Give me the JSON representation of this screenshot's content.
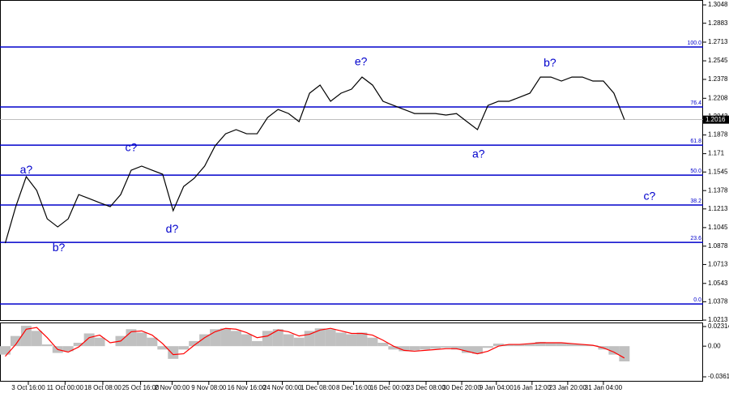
{
  "chart_data": [
    {
      "type": "line",
      "xlim": [
        0,
        67
      ],
      "xticks": [
        {
          "value": 2.7,
          "label": "3 Oct 16:00"
        },
        {
          "value": 6.2,
          "label": "11 Oct 00:00"
        },
        {
          "value": 9.8,
          "label": "18 Oct 08:00"
        },
        {
          "value": 13.4,
          "label": "25 Oct 16:00"
        },
        {
          "value": 16.4,
          "label": "2 Nov 00:00"
        },
        {
          "value": 19.9,
          "label": "9 Nov 08:00"
        },
        {
          "value": 23.5,
          "label": "16 Nov 16:00"
        },
        {
          "value": 26.9,
          "label": "24 Nov 00:00"
        },
        {
          "value": 30.3,
          "label": "1 Dec 08:00"
        },
        {
          "value": 33.7,
          "label": "8 Dec 16:00"
        },
        {
          "value": 37.1,
          "label": "16 Dec 00:00"
        },
        {
          "value": 40.6,
          "label": "23 Dec 08:00"
        },
        {
          "value": 44.0,
          "label": "30 Dec 20:00"
        },
        {
          "value": 47.3,
          "label": "9 Jan 04:00"
        },
        {
          "value": 50.7,
          "label": "16 Jan 12:00"
        },
        {
          "value": 54.1,
          "label": "23 Jan 20:00"
        },
        {
          "value": 57.5,
          "label": "31 Jan 04:00"
        }
      ],
      "ylim": [
        1.0206,
        1.3092
      ],
      "yticks": [
        1.3048,
        1.2883,
        1.2713,
        1.2545,
        1.2378,
        1.2208,
        1.2043,
        1.1878,
        1.171,
        1.1545,
        1.1378,
        1.1213,
        1.1045,
        1.0878,
        1.0713,
        1.0543,
        1.0378,
        1.0213
      ],
      "series": [
        {
          "color": "#000000",
          "values": [
            1.0905,
            1.1233,
            1.1503,
            1.1379,
            1.1124,
            1.1051,
            1.1124,
            1.1342,
            1.1306,
            1.1269,
            1.1233,
            1.1342,
            1.1561,
            1.1598,
            1.1561,
            1.1525,
            1.1197,
            1.1415,
            1.1488,
            1.1598,
            1.178,
            1.1889,
            1.1926,
            1.1889,
            1.1889,
            1.2035,
            1.2108,
            1.2071,
            1.1998,
            1.2254,
            1.2327,
            1.2181,
            1.2254,
            1.229,
            1.2399,
            1.2327,
            1.2181,
            1.2144,
            1.2108,
            1.2071,
            1.2071,
            1.2071,
            1.2057,
            1.2071,
            1.1998,
            1.1926,
            1.2144,
            1.2181,
            1.2181,
            1.2217,
            1.2254,
            1.2399,
            1.2399,
            1.2363,
            1.2399,
            1.2399,
            1.2363,
            1.2363,
            1.2254,
            1.2016
          ]
        }
      ],
      "current_price": 1.2016,
      "fib_color": "#0000cc",
      "fib_levels": [
        {
          "label": "100.0",
          "price": 1.2669
        },
        {
          "label": "76.4",
          "price": 1.213
        },
        {
          "label": "61.8",
          "price": 1.1787
        },
        {
          "label": "50.0",
          "price": 1.1517
        },
        {
          "label": "38.2",
          "price": 1.1248
        },
        {
          "label": "23.6",
          "price": 1.0912
        },
        {
          "label": "0.0",
          "price": 1.0358
        }
      ],
      "annotations": [
        {
          "text": "a?",
          "x": 2.5,
          "y": 1.1561
        },
        {
          "text": "b?",
          "x": 5.6,
          "y": 1.0861
        },
        {
          "text": "c?",
          "x": 12.5,
          "y": 1.1758
        },
        {
          "text": "d?",
          "x": 16.4,
          "y": 1.1029
        },
        {
          "text": "e?",
          "x": 34.4,
          "y": 1.2531
        },
        {
          "text": "a?",
          "x": 45.6,
          "y": 1.17
        },
        {
          "text": "b?",
          "x": 52.4,
          "y": 1.2523
        },
        {
          "text": "c?",
          "x": 61.9,
          "y": 1.1321
        }
      ]
    },
    {
      "type": "bar",
      "ylim": [
        -0.0419,
        0.0279
      ],
      "yticks": [
        0.02314,
        {
          "value": 0,
          "label": "0.00"
        },
        -0.03619
      ],
      "series": [
        {
          "color": "#c0c0c0",
          "values": [
            -0.01,
            0.012,
            0.024,
            0.018,
            0.002,
            -0.008,
            -0.006,
            0.004,
            0.015,
            0.01,
            0.0,
            0.012,
            0.02,
            0.016,
            0.01,
            -0.004,
            -0.015,
            -0.004,
            0.006,
            0.014,
            0.02,
            0.021,
            0.018,
            0.014,
            0.006,
            0.018,
            0.02,
            0.014,
            0.01,
            0.018,
            0.021,
            0.02,
            0.016,
            0.014,
            0.016,
            0.01,
            0.004,
            -0.004,
            -0.006,
            -0.005,
            -0.004,
            -0.003,
            -0.002,
            -0.004,
            -0.008,
            -0.009,
            -0.002,
            0.003,
            0.002,
            0.002,
            0.003,
            0.005,
            0.004,
            0.004,
            0.003,
            0.002,
            0.001,
            -0.004,
            -0.01,
            -0.018
          ]
        },
        {
          "type": "line",
          "color": "#ff0000",
          "values": [
            -0.012,
            0.002,
            0.02,
            0.022,
            0.01,
            -0.004,
            -0.007,
            -0.001,
            0.01,
            0.013,
            0.004,
            0.006,
            0.017,
            0.018,
            0.013,
            0.003,
            -0.01,
            -0.009,
            0.001,
            0.01,
            0.017,
            0.021,
            0.02,
            0.016,
            0.01,
            0.012,
            0.019,
            0.017,
            0.012,
            0.014,
            0.019,
            0.021,
            0.018,
            0.015,
            0.015,
            0.013,
            0.007,
            0.0,
            -0.005,
            -0.006,
            -0.005,
            -0.004,
            -0.003,
            -0.003,
            -0.006,
            -0.009,
            -0.006,
            0.0,
            0.002,
            0.002,
            0.003,
            0.004,
            0.004,
            0.004,
            0.003,
            0.002,
            0.001,
            -0.002,
            -0.007,
            -0.014
          ]
        }
      ]
    }
  ]
}
